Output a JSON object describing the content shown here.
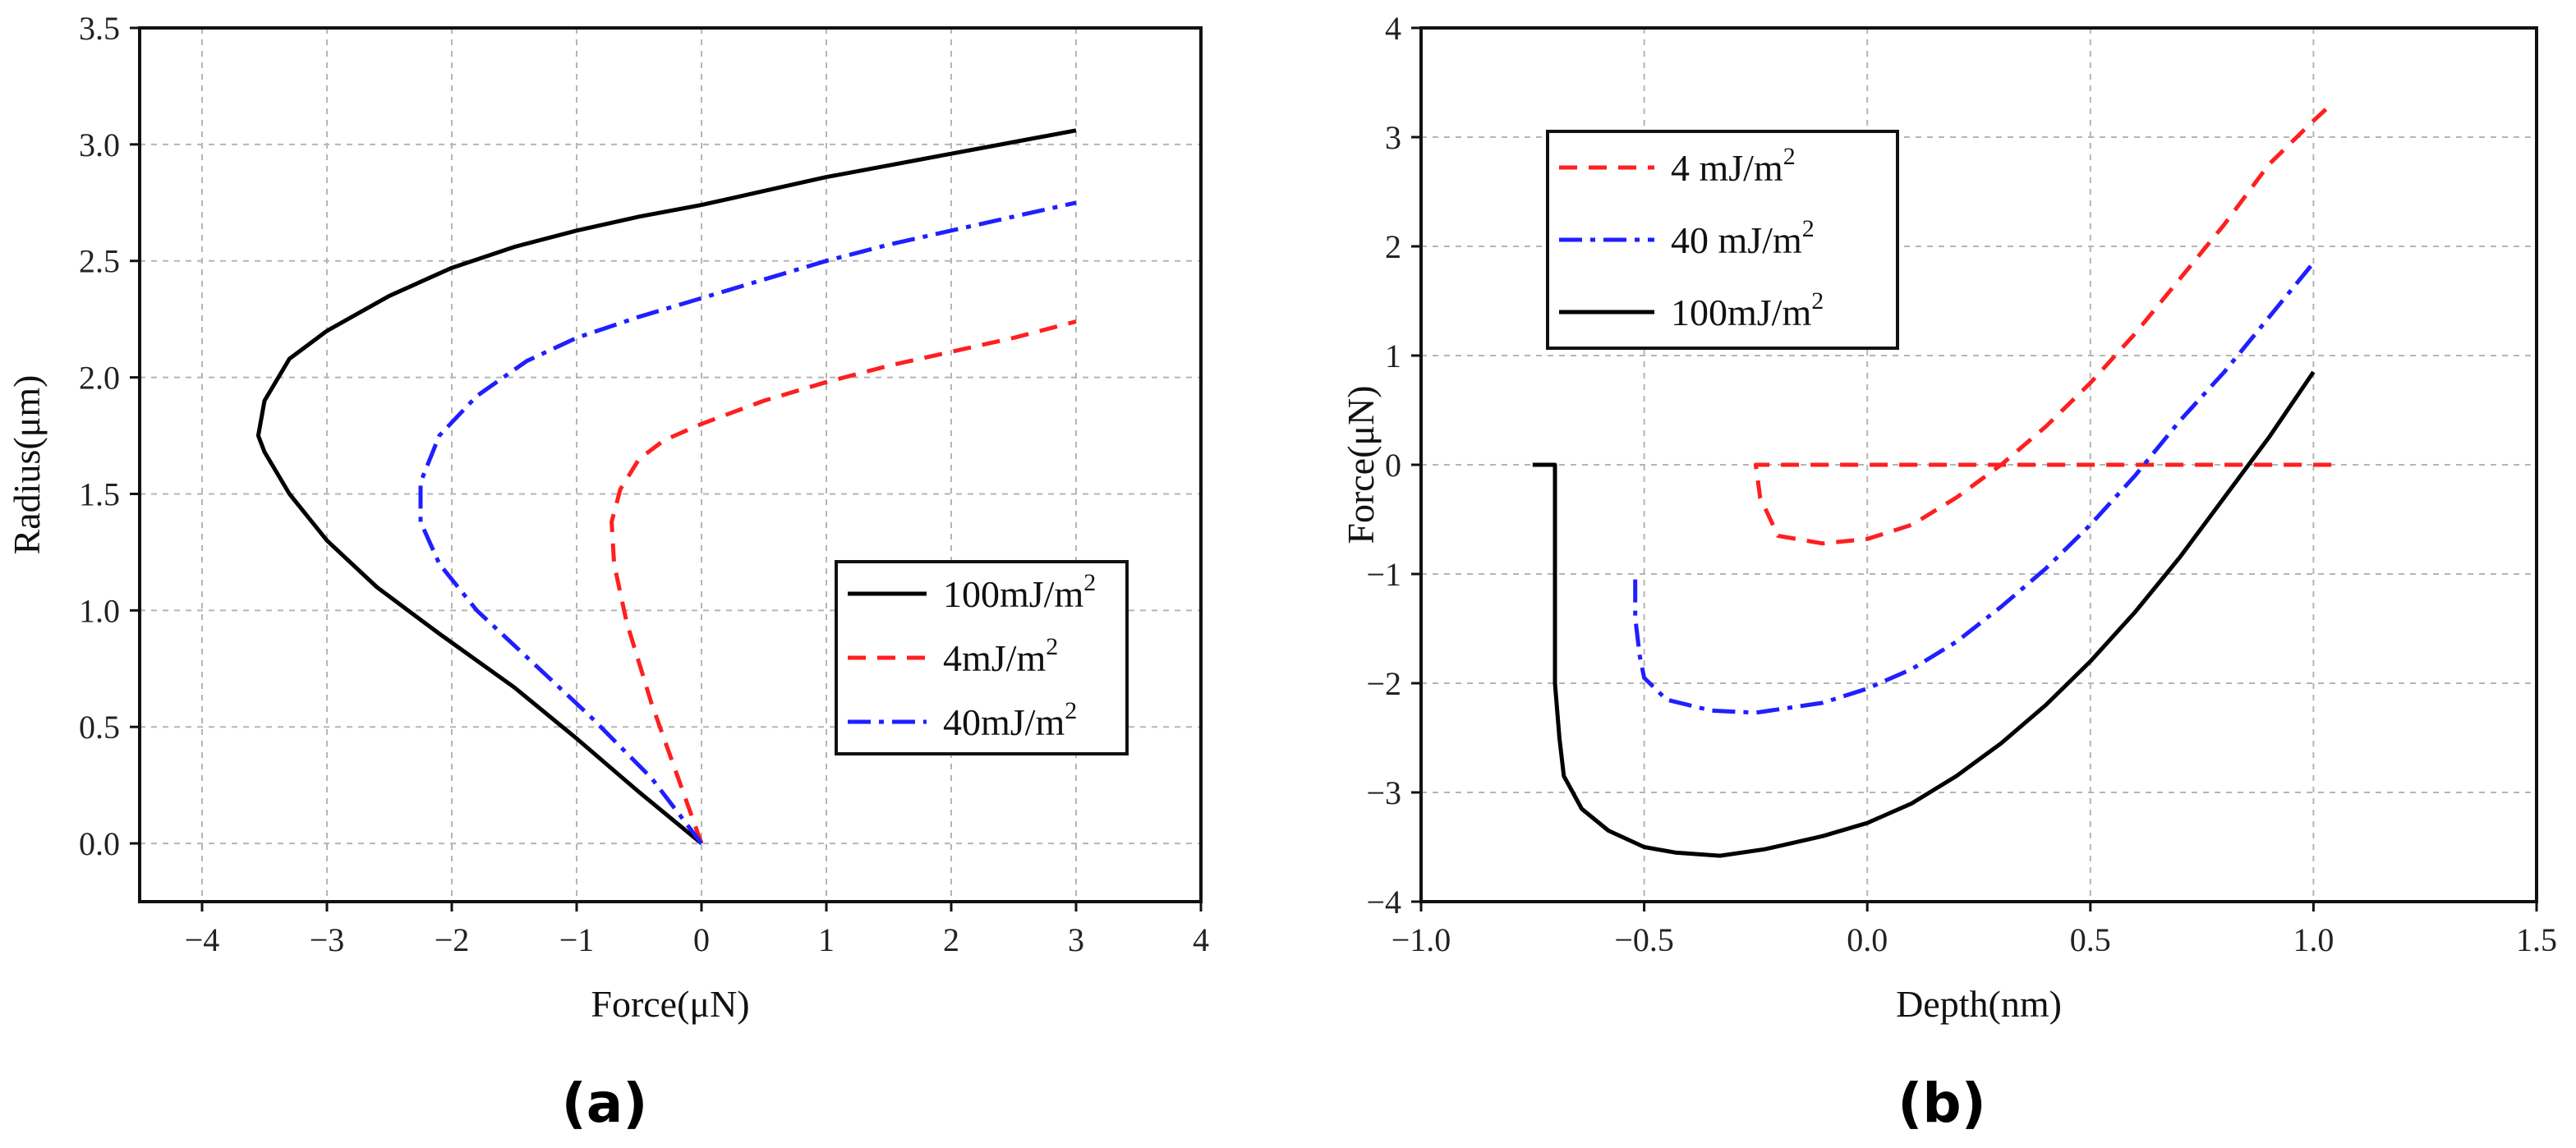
{
  "chart_data": [
    {
      "type": "line",
      "panel_label": "(a)",
      "xlabel": "Force(μN)",
      "ylabel": "Radius(μm)",
      "xlim": [
        -4.5,
        4
      ],
      "ylim": [
        -0.25,
        3.5
      ],
      "xticks": [
        -4,
        -3,
        -2,
        -1,
        0,
        1,
        2,
        3,
        4
      ],
      "xtick_labels": [
        "−4",
        "−3",
        "−2",
        "−1",
        "0",
        "1",
        "2",
        "3",
        "4"
      ],
      "yticks": [
        0.0,
        0.5,
        1.0,
        1.5,
        2.0,
        2.5,
        3.0,
        3.5
      ],
      "ytick_labels": [
        "0.0",
        "0.5",
        "1.0",
        "1.5",
        "2.0",
        "2.5",
        "3.0",
        "3.5"
      ],
      "grid": true,
      "legend_position": "right",
      "series": [
        {
          "name": "100mJ/m",
          "superscript": "2",
          "color": "#000000",
          "dash": "solid",
          "x": [
            0,
            -0.5,
            -1,
            -1.5,
            -2.1,
            -2.6,
            -3.0,
            -3.3,
            -3.5,
            -3.55,
            -3.5,
            -3.3,
            -3.0,
            -2.5,
            -2.0,
            -1.5,
            -1.0,
            -0.5,
            0,
            0.5,
            1,
            1.5,
            2,
            2.5,
            3
          ],
          "y": [
            0.0,
            0.22,
            0.45,
            0.67,
            0.9,
            1.1,
            1.3,
            1.5,
            1.68,
            1.75,
            1.9,
            2.08,
            2.2,
            2.35,
            2.47,
            2.56,
            2.63,
            2.69,
            2.74,
            2.8,
            2.86,
            2.91,
            2.96,
            3.01,
            3.06
          ]
        },
        {
          "name": "4mJ/m",
          "superscript": "2",
          "color": "#ff1f1f",
          "dash": "dashed",
          "x": [
            0,
            -0.2,
            -0.4,
            -0.6,
            -0.7,
            -0.72,
            -0.65,
            -0.5,
            -0.3,
            0,
            0.5,
            1.0,
            1.5,
            2.0,
            2.5,
            3.0
          ],
          "y": [
            0.0,
            0.3,
            0.6,
            0.95,
            1.2,
            1.38,
            1.52,
            1.65,
            1.73,
            1.8,
            1.9,
            1.98,
            2.05,
            2.11,
            2.17,
            2.24
          ]
        },
        {
          "name": "40mJ/m",
          "superscript": "2",
          "color": "#1f1fff",
          "dash": "dashdot",
          "x": [
            0,
            -0.4,
            -0.9,
            -1.4,
            -1.8,
            -2.1,
            -2.25,
            -2.25,
            -2.1,
            -1.8,
            -1.4,
            -1.0,
            -0.5,
            0,
            0.5,
            1.0,
            1.5,
            2.0,
            2.5,
            3.0
          ],
          "y": [
            0.0,
            0.28,
            0.55,
            0.8,
            1.0,
            1.2,
            1.38,
            1.55,
            1.75,
            1.92,
            2.07,
            2.17,
            2.26,
            2.34,
            2.42,
            2.5,
            2.57,
            2.63,
            2.69,
            2.75
          ]
        }
      ]
    },
    {
      "type": "line",
      "panel_label": "(b)",
      "xlabel": "Depth(nm)",
      "ylabel": "Force(μN)",
      "xlim": [
        -1.0,
        1.5
      ],
      "ylim": [
        -4,
        4
      ],
      "xticks": [
        -1.0,
        -0.5,
        0.0,
        0.5,
        1.0,
        1.5
      ],
      "xtick_labels": [
        "−1.0",
        "−0.5",
        "0.0",
        "0.5",
        "1.0",
        "1.5"
      ],
      "yticks": [
        -4,
        -3,
        -2,
        -1,
        0,
        1,
        2,
        3,
        4
      ],
      "ytick_labels": [
        "−4",
        "−3",
        "−2",
        "−1",
        "0",
        "1",
        "2",
        "3",
        "4"
      ],
      "grid": true,
      "legend_position": "top-left",
      "series": [
        {
          "name": "4 mJ/m",
          "superscript": "2",
          "color": "#ff1f1f",
          "dash": "dashed",
          "x": [
            1.04,
            0.6,
            0.0,
            -0.1,
            -0.2,
            -0.25,
            -0.24,
            -0.2,
            -0.1,
            0.0,
            0.1,
            0.2,
            0.3,
            0.4,
            0.5,
            0.6,
            0.7,
            0.8,
            0.9,
            1.0,
            1.04
          ],
          "y": [
            0.0,
            0.0,
            0.0,
            0.0,
            0.0,
            0.0,
            -0.3,
            -0.65,
            -0.72,
            -0.68,
            -0.55,
            -0.3,
            0.0,
            0.35,
            0.75,
            1.2,
            1.7,
            2.2,
            2.75,
            3.15,
            3.3
          ]
        },
        {
          "name": "40 mJ/m",
          "superscript": "2",
          "color": "#1f1fff",
          "dash": "dashdot",
          "x": [
            -0.52,
            -0.52,
            -0.51,
            -0.5,
            -0.45,
            -0.35,
            -0.25,
            -0.1,
            0.0,
            0.1,
            0.2,
            0.3,
            0.4,
            0.5,
            0.6,
            0.7,
            0.8,
            0.9,
            1.0
          ],
          "y": [
            -1.05,
            -1.4,
            -1.75,
            -1.95,
            -2.15,
            -2.25,
            -2.27,
            -2.18,
            -2.05,
            -1.87,
            -1.62,
            -1.3,
            -0.95,
            -0.55,
            -0.1,
            0.4,
            0.85,
            1.35,
            1.85
          ]
        },
        {
          "name": "100mJ/m",
          "superscript": "2",
          "color": "#000000",
          "dash": "solid",
          "x": [
            -0.75,
            -0.7,
            -0.7,
            -0.69,
            -0.68,
            -0.64,
            -0.58,
            -0.5,
            -0.43,
            -0.33,
            -0.23,
            -0.1,
            0.0,
            0.1,
            0.2,
            0.3,
            0.4,
            0.5,
            0.6,
            0.7,
            0.8,
            0.9,
            1.0
          ],
          "y": [
            0.0,
            0.0,
            -2.0,
            -2.5,
            -2.85,
            -3.15,
            -3.35,
            -3.5,
            -3.55,
            -3.58,
            -3.52,
            -3.4,
            -3.28,
            -3.1,
            -2.85,
            -2.55,
            -2.2,
            -1.8,
            -1.35,
            -0.85,
            -0.3,
            0.25,
            0.85
          ]
        }
      ]
    }
  ]
}
